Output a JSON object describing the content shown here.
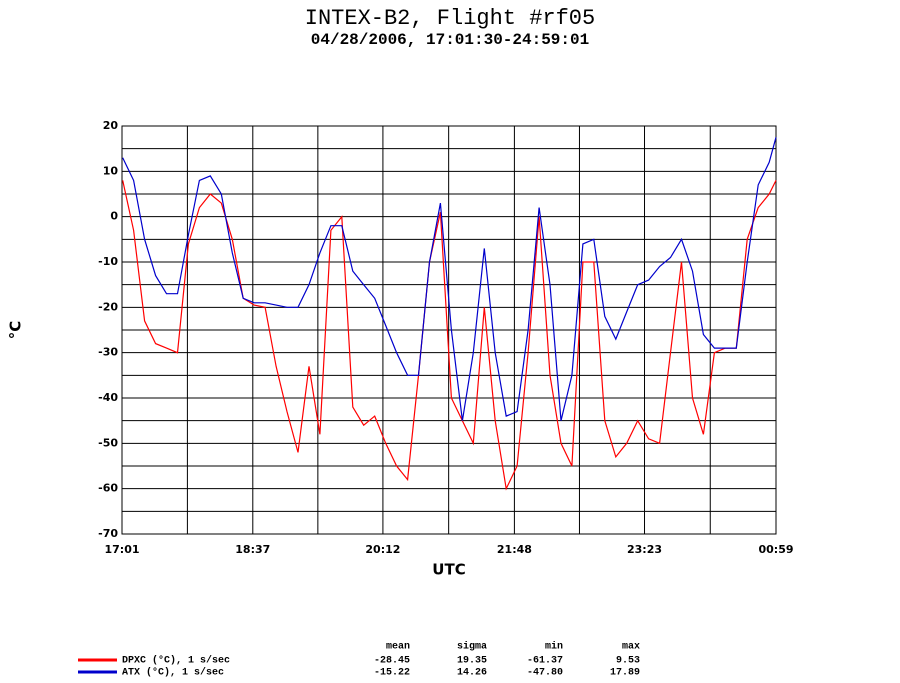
{
  "chart_data": {
    "type": "line",
    "title": "INTEX-B2, Flight #rf05",
    "subtitle": "04/28/2006, 17:01:30-24:59:01",
    "x_label": "UTC",
    "y_label": "°C",
    "x": [
      1022,
      1030,
      1038,
      1046,
      1054,
      1062,
      1070,
      1078,
      1086,
      1094,
      1102,
      1110,
      1118,
      1126,
      1134,
      1142,
      1150,
      1158,
      1166,
      1174,
      1182,
      1190,
      1198,
      1206,
      1214,
      1222,
      1230,
      1238,
      1246,
      1254,
      1262,
      1270,
      1278,
      1286,
      1294,
      1302,
      1310,
      1318,
      1326,
      1334,
      1342,
      1350,
      1358,
      1366,
      1374,
      1382,
      1390,
      1398,
      1406,
      1414,
      1422,
      1430,
      1438,
      1446,
      1454,
      1462,
      1470,
      1478,
      1486,
      1494,
      1499
    ],
    "series": [
      {
        "name": "DPXC (°C), 1 s/sec",
        "color": "#ff0000",
        "values": [
          8,
          -3,
          -23,
          -28,
          -29,
          -30,
          -6,
          2,
          5,
          3,
          -5,
          -18,
          -19.5,
          -20,
          -33,
          -43,
          -52,
          -33,
          -48,
          -3,
          0,
          -42,
          -46,
          -44,
          -50,
          -55,
          -58,
          -35,
          -10,
          1,
          -40,
          -45,
          -50,
          -20,
          -45,
          -60,
          -55,
          -30,
          0,
          -35,
          -50,
          -55,
          -10,
          -10,
          -45,
          -53,
          -50,
          -45,
          -49,
          -50,
          -30,
          -10,
          -40,
          -48,
          -30,
          -29,
          -29,
          -5,
          2,
          5,
          8
        ]
      },
      {
        "name": "ATX (°C), 1 s/sec",
        "color": "#0000cc",
        "values": [
          13,
          8,
          -5,
          -13,
          -17,
          -17,
          -4,
          8,
          9,
          5,
          -8,
          -18,
          -19,
          -19,
          -19.5,
          -20,
          -20,
          -15,
          -8,
          -2,
          -2,
          -12,
          -15,
          -18,
          -24,
          -30,
          -35,
          -35,
          -10,
          3,
          -25,
          -45,
          -30,
          -7,
          -30,
          -44,
          -43,
          -25,
          2,
          -15,
          -45,
          -35,
          -6,
          -5,
          -22,
          -27,
          -21,
          -15,
          -14,
          -11,
          -9,
          -5,
          -12,
          -26,
          -29,
          -29,
          -29,
          -10,
          7,
          12,
          17.5
        ]
      }
    ],
    "xlim": [
      1021.5,
      1499
    ],
    "xticks": [
      {
        "value": 1021.5,
        "label": "17:01"
      },
      {
        "value": 1117,
        "label": "18:37"
      },
      {
        "value": 1212,
        "label": "20:12"
      },
      {
        "value": 1308,
        "label": "21:48"
      },
      {
        "value": 1403,
        "label": "23:23"
      },
      {
        "value": 1499,
        "label": "00:59"
      }
    ],
    "ylim": [
      -70,
      20
    ],
    "yticks": [
      -70,
      -60,
      -50,
      -40,
      -30,
      -20,
      -10,
      0,
      10,
      20
    ],
    "grid": true,
    "stats": {
      "columns": [
        "mean",
        "sigma",
        "min",
        "max"
      ],
      "rows": [
        [
          "-28.45",
          "19.35",
          "-61.37",
          "9.53"
        ],
        [
          "-15.22",
          "14.26",
          "-47.80",
          "17.89"
        ]
      ]
    }
  }
}
